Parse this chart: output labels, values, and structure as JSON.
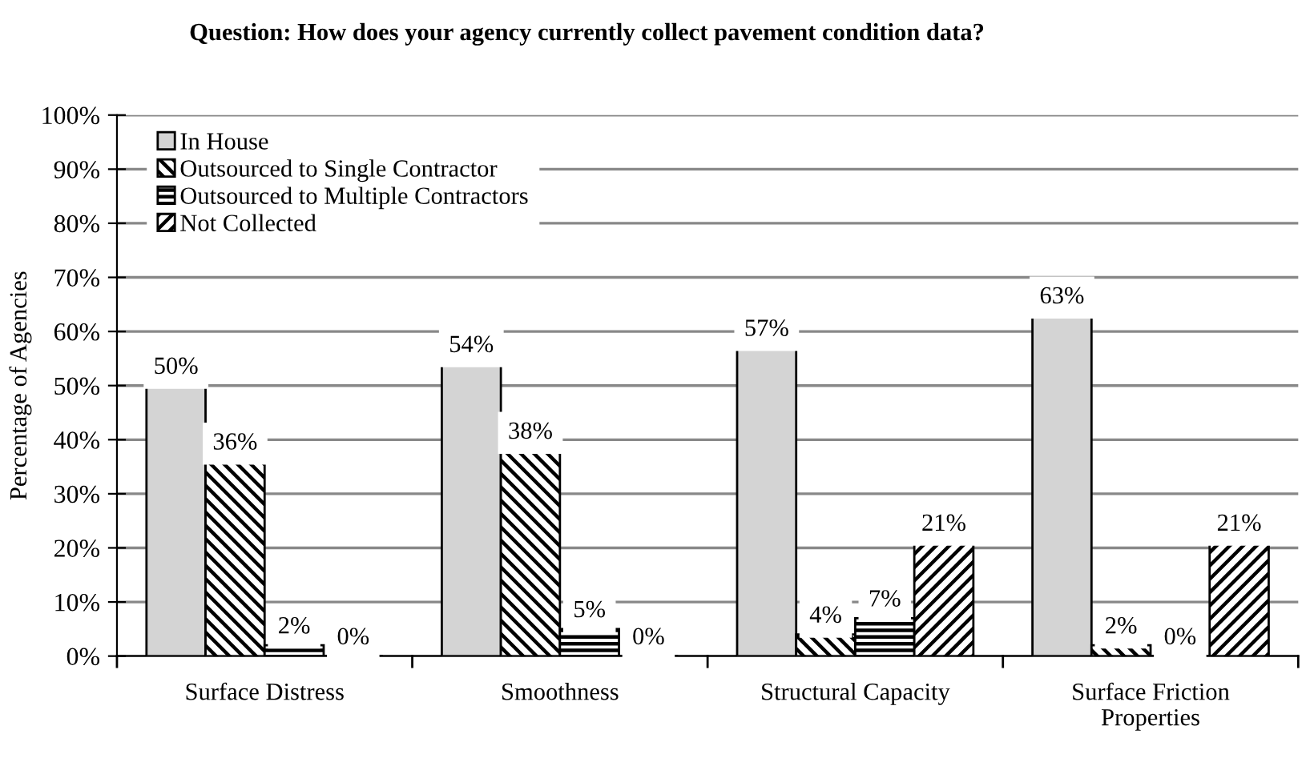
{
  "chart_data": {
    "type": "bar",
    "title": "Question: How does your agency currently collect pavement condition data?",
    "ylabel": "Percentage of Agencies",
    "categories": [
      "Surface Distress",
      "Smoothness",
      "Structural Capacity",
      "Surface Friction\nProperties"
    ],
    "series": [
      {
        "name": "In House",
        "color": "#d4d4d4",
        "values": [
          50,
          54,
          57,
          63
        ],
        "value_labels": [
          "50%",
          "54%",
          "57%",
          "63%"
        ]
      },
      {
        "name": "Outsourced to Single Contractor",
        "color": "#000000",
        "values": [
          36,
          38,
          4,
          2
        ],
        "value_labels": [
          "36%",
          "38%",
          "4%",
          "2%"
        ]
      },
      {
        "name": "Outsourced to Multiple Contractors",
        "color": "#000000",
        "values": [
          2,
          5,
          7,
          0
        ],
        "value_labels": [
          "2%",
          "5%",
          "7%",
          "0%"
        ]
      },
      {
        "name": "Not Collected",
        "color": "#000000",
        "values": [
          0,
          0,
          21,
          21
        ],
        "value_labels": [
          "0%",
          "0%",
          "21%",
          "21%"
        ]
      }
    ],
    "ylim": [
      0,
      100
    ],
    "yticks": [
      {
        "value": 0,
        "label": "0%"
      },
      {
        "value": 10,
        "label": "10%"
      },
      {
        "value": 20,
        "label": "20%"
      },
      {
        "value": 30,
        "label": "30%"
      },
      {
        "value": 40,
        "label": "40%"
      },
      {
        "value": 50,
        "label": "50%"
      },
      {
        "value": 60,
        "label": "60%"
      },
      {
        "value": 70,
        "label": "70%"
      },
      {
        "value": 80,
        "label": "80%"
      },
      {
        "value": 90,
        "label": "90%"
      },
      {
        "value": 100,
        "label": "100%"
      }
    ],
    "grid": "y",
    "legend": "top left"
  }
}
